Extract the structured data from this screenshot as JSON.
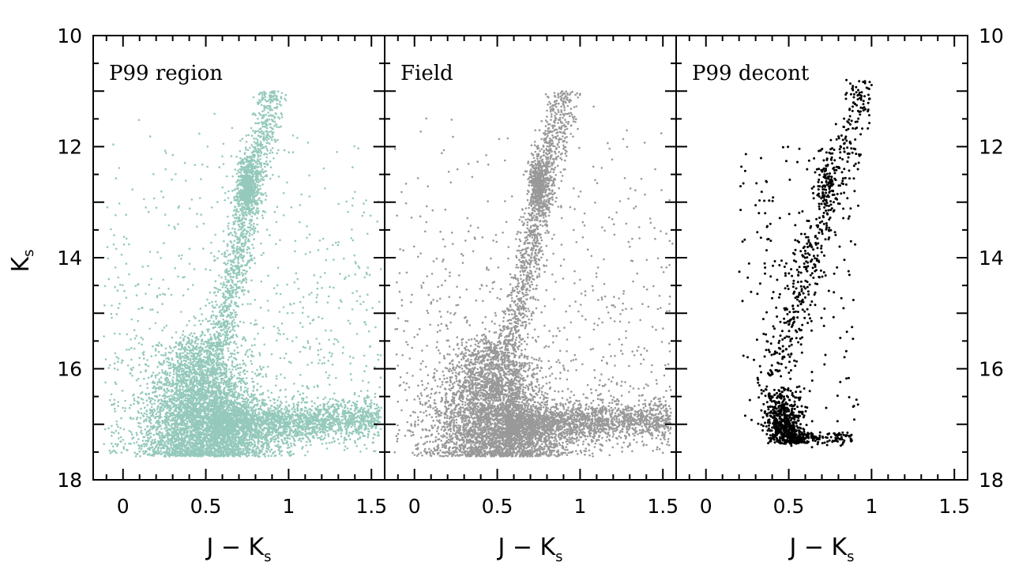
{
  "chart_data": {
    "type": "scatter",
    "layout": "three side-by-side panels sharing the y axis",
    "ylabel": "K",
    "ylabel_sub": "s",
    "xlabel": "J − K",
    "xlabel_sub": "s",
    "xlim": [
      -0.18,
      1.58
    ],
    "ylim": [
      18,
      10
    ],
    "y_inverted": true,
    "xticks": [
      0,
      0.5,
      1,
      1.5
    ],
    "xtick_labels": [
      "0",
      "0.5",
      "1",
      "1.5"
    ],
    "yticks": [
      10,
      12,
      14,
      16,
      18
    ],
    "ytick_labels": [
      "10",
      "12",
      "14",
      "16",
      "18"
    ],
    "grid": false,
    "panels": [
      {
        "title": "P99 region",
        "color": "#94c9bb",
        "points_approx": 9000,
        "sequences": [
          {
            "name": "main sequence / turnoff",
            "color_center": 0.48,
            "mag_range": [
              15.2,
              17.6
            ],
            "density": "very high"
          },
          {
            "name": "faint tail",
            "color_range": [
              0.6,
              1.5
            ],
            "mag_range": [
              16.9,
              17.5
            ],
            "density": "high"
          },
          {
            "name": "red giant branch",
            "x": [
              0.58,
              0.72,
              0.8,
              0.92
            ],
            "y": [
              15.5,
              14.0,
              12.7,
              11.0
            ],
            "density": "medium"
          },
          {
            "name": "red clump",
            "x": 0.75,
            "y": 12.7,
            "density": "high"
          },
          {
            "name": "field scatter",
            "color_range": [
              -0.1,
              1.55
            ],
            "mag_range": [
              11.0,
              17.5
            ],
            "density": "low"
          }
        ]
      },
      {
        "title": "Field",
        "color": "#999999",
        "points_approx": 8000,
        "sequences": [
          {
            "name": "main sequence / turnoff",
            "color_center": 0.48,
            "mag_range": [
              15.0,
              17.6
            ],
            "density": "very high"
          },
          {
            "name": "faint tail",
            "color_range": [
              0.6,
              1.5
            ],
            "mag_range": [
              16.9,
              17.5
            ],
            "density": "high"
          },
          {
            "name": "red giant branch",
            "x": [
              0.6,
              0.72,
              0.8,
              0.92
            ],
            "y": [
              15.5,
              14.0,
              12.6,
              11.0
            ],
            "density": "medium"
          },
          {
            "name": "red clump",
            "x": 0.76,
            "y": 12.6,
            "density": "medium"
          },
          {
            "name": "field scatter",
            "color_range": [
              -0.1,
              1.55
            ],
            "mag_range": [
              11.0,
              17.5
            ],
            "density": "low"
          }
        ]
      },
      {
        "title": "P99 decont",
        "color": "#000000",
        "points_approx": 1500,
        "sequences": [
          {
            "name": "main sequence / turnoff",
            "color_center": 0.46,
            "mag_range": [
              16.2,
              17.3
            ],
            "density": "very high"
          },
          {
            "name": "faint tail",
            "color_range": [
              0.5,
              0.85
            ],
            "mag_range": [
              17.1,
              17.4
            ],
            "density": "high"
          },
          {
            "name": "red giant branch",
            "x": [
              0.4,
              0.6,
              0.75,
              0.82,
              0.98
            ],
            "y": [
              16.0,
              15.0,
              13.8,
              12.5,
              10.8
            ],
            "density": "medium"
          },
          {
            "name": "red clump",
            "x": 0.73,
            "y": 12.6,
            "density": "medium"
          },
          {
            "name": "field scatter",
            "color_range": [
              0.1,
              0.95
            ],
            "mag_range": [
              11.5,
              17.0
            ],
            "density": "low"
          }
        ]
      }
    ]
  }
}
